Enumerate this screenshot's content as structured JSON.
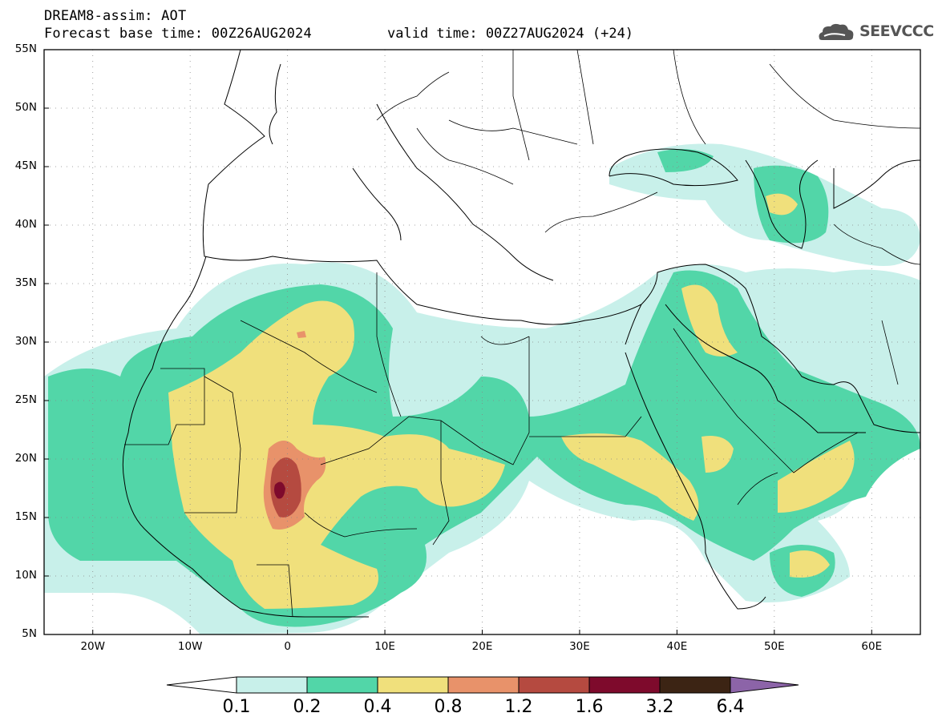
{
  "header": {
    "title": "DREAM8-assim: AOT",
    "base_time": "Forecast base time: 00Z26AUG2024",
    "valid_time": "valid time: 00Z27AUG2024 (+24)"
  },
  "logo": {
    "text": "SEEVCCC",
    "icon": "cloud-icon"
  },
  "map": {
    "lon_range": [
      -25,
      65
    ],
    "lat_range": [
      5,
      55
    ],
    "y_ticks": [
      "55N",
      "50N",
      "45N",
      "40N",
      "35N",
      "30N",
      "25N",
      "20N",
      "15N",
      "10N",
      "5N"
    ],
    "x_ticks": [
      "20W",
      "10W",
      "0",
      "10E",
      "20E",
      "30E",
      "40E",
      "50E",
      "60E"
    ],
    "grid": "dotted"
  },
  "colorbar": {
    "labels": [
      "0.1",
      "0.2",
      "0.4",
      "0.8",
      "1.2",
      "1.6",
      "3.2",
      "6.4"
    ],
    "colors": [
      "#ffffff",
      "#c8f0ea",
      "#52d6a8",
      "#f0e07c",
      "#e8926a",
      "#b54a40",
      "#7e0a2c",
      "#3c2414",
      "#8c64a8"
    ]
  }
}
